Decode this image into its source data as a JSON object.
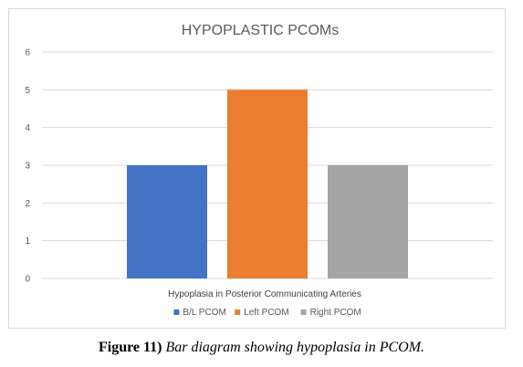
{
  "chart_data": {
    "type": "bar",
    "title": "HYPOPLASTIC PCOMs",
    "xlabel": "Hypoplasia in Posterior Communicating Arteries",
    "ylabel": "",
    "ylim": [
      0,
      6
    ],
    "yticks": [
      0,
      1,
      2,
      3,
      4,
      5,
      6
    ],
    "grid": true,
    "legend_position": "bottom",
    "categories": [
      "Hypoplasia in Posterior Communicating Arteries"
    ],
    "series": [
      {
        "name": "B/L PCOM",
        "values": [
          3
        ],
        "color": "#4472c4"
      },
      {
        "name": "Left PCOM",
        "values": [
          5
        ],
        "color": "#ed7d31"
      },
      {
        "name": "Right PCOM",
        "values": [
          3
        ],
        "color": "#a5a5a5"
      }
    ]
  },
  "caption": {
    "label": "Figure 11)",
    "text": "Bar diagram showing hypoplasia in PCOM."
  }
}
